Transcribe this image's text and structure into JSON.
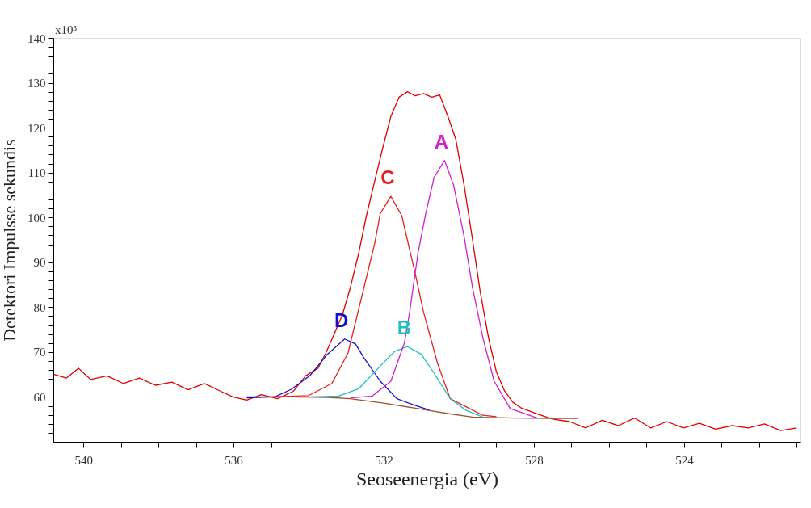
{
  "chart_data": {
    "type": "line",
    "xlabel": "Seoseenergia (eV)",
    "ylabel": "Detektori Impulsse sekundis",
    "annotations": [
      "x10³"
    ],
    "xlim": [
      540.8,
      520.9
    ],
    "xticks": [
      {
        "value": 521,
        "label": null
      },
      {
        "value": 522,
        "label": null
      },
      {
        "value": 523,
        "label": null
      },
      524,
      {
        "value": 525,
        "label": null
      },
      {
        "value": 526,
        "label": null
      },
      {
        "value": 527,
        "label": null
      },
      528,
      {
        "value": 529,
        "label": null
      },
      {
        "value": 530,
        "label": null
      },
      {
        "value": 531,
        "label": null
      },
      532,
      {
        "value": 533,
        "label": null
      },
      {
        "value": 534,
        "label": null
      },
      {
        "value": 535,
        "label": null
      },
      536,
      {
        "value": 537,
        "label": null
      },
      {
        "value": 538,
        "label": null
      },
      {
        "value": 539,
        "label": null
      },
      540
    ],
    "ylim": [
      50,
      140
    ],
    "yticks": [
      {
        "value": 52,
        "label": null
      },
      {
        "value": 54,
        "label": null
      },
      {
        "value": 56,
        "label": null
      },
      {
        "value": 58,
        "label": null
      },
      60,
      {
        "value": 62,
        "label": null
      },
      {
        "value": 64,
        "label": null
      },
      {
        "value": 66,
        "label": null
      },
      {
        "value": 68,
        "label": null
      },
      70,
      {
        "value": 72,
        "label": null
      },
      {
        "value": 74,
        "label": null
      },
      {
        "value": 76,
        "label": null
      },
      {
        "value": 78,
        "label": null
      },
      80,
      {
        "value": 82,
        "label": null
      },
      {
        "value": 84,
        "label": null
      },
      {
        "value": 86,
        "label": null
      },
      {
        "value": 88,
        "label": null
      },
      90,
      {
        "value": 92,
        "label": null
      },
      {
        "value": 94,
        "label": null
      },
      {
        "value": 96,
        "label": null
      },
      {
        "value": 98,
        "label": null
      },
      100,
      {
        "value": 102,
        "label": null
      },
      {
        "value": 104,
        "label": null
      },
      {
        "value": 106,
        "label": null
      },
      {
        "value": 108,
        "label": null
      },
      110,
      {
        "value": 112,
        "label": null
      },
      {
        "value": 114,
        "label": null
      },
      {
        "value": 116,
        "label": null
      },
      {
        "value": 118,
        "label": null
      },
      120,
      {
        "value": 122,
        "label": null
      },
      {
        "value": 124,
        "label": null
      },
      {
        "value": 126,
        "label": null
      },
      {
        "value": 128,
        "label": null
      },
      130,
      {
        "value": 132,
        "label": null
      },
      {
        "value": 134,
        "label": null
      },
      {
        "value": 136,
        "label": null
      },
      {
        "value": 138,
        "label": null
      },
      140
    ],
    "grid": false,
    "legend": false,
    "marker": "none",
    "line_style": "solid",
    "series": [
      {
        "color": "#e00000",
        "x": [
          540.78,
          540.45,
          540.13,
          539.81,
          539.37,
          538.94,
          538.51,
          538.08,
          537.64,
          537.21,
          536.78,
          536.35,
          536.02,
          535.65,
          535.26,
          534.83,
          534.4,
          534.08,
          533.75,
          533.54,
          533.32,
          533.1,
          532.89,
          532.67,
          532.46,
          532.24,
          532.02,
          531.81,
          531.59,
          531.37,
          531.16,
          530.94,
          530.72,
          530.51,
          530.29,
          530.08,
          529.86,
          529.64,
          529.43,
          529.21,
          529.0,
          528.78,
          528.56,
          528.35,
          527.91,
          527.48,
          527.05,
          526.62,
          526.18,
          525.75,
          525.32,
          524.89,
          524.46,
          524.02,
          523.59,
          523.16,
          522.72,
          522.29,
          521.86,
          521.43,
          521.0
        ],
        "values": [
          65.0,
          64.2,
          66.4,
          63.9,
          64.7,
          63.0,
          64.2,
          62.6,
          63.3,
          61.6,
          63.0,
          61.3,
          60.0,
          59.3,
          60.5,
          59.6,
          61.3,
          64.7,
          66.4,
          69.8,
          74.0,
          78.3,
          84.3,
          91.9,
          100.4,
          108.1,
          115.7,
          122.5,
          126.8,
          128.0,
          127.1,
          127.6,
          126.8,
          127.3,
          122.5,
          117.4,
          107.2,
          95.3,
          83.4,
          73.2,
          65.6,
          61.3,
          58.8,
          57.6,
          56.2,
          55.0,
          54.5,
          53.1,
          54.8,
          53.6,
          55.3,
          53.1,
          54.5,
          53.1,
          54.1,
          52.8,
          53.6,
          53.1,
          54.0,
          52.5,
          53.1
        ]
      },
      {
        "color": "#a0522d",
        "x": [
          535.65,
          534.5,
          533.5,
          532.89,
          532.0,
          531.09,
          530.3,
          529.64,
          528.5,
          527.5,
          526.83
        ],
        "values": [
          60.0,
          60.0,
          59.9,
          59.6,
          58.6,
          57.4,
          56.3,
          55.5,
          55.3,
          55.2,
          55.2
        ]
      },
      {
        "name": "D",
        "color": "#1010d0",
        "x": [
          535.65,
          534.9,
          534.46,
          533.97,
          533.5,
          533.04,
          532.75,
          532.52,
          532.09,
          531.65,
          531.2,
          530.79
        ],
        "values": [
          59.8,
          60.0,
          61.7,
          64.7,
          69.5,
          72.9,
          71.8,
          68.6,
          63.5,
          59.6,
          58.2,
          57.1
        ]
      },
      {
        "name": "C",
        "color": "#e82020",
        "x": [
          535.0,
          534.0,
          533.38,
          532.95,
          532.24,
          532.09,
          531.81,
          531.52,
          531.16,
          530.94,
          530.57,
          530.23,
          529.36,
          529.0
        ],
        "values": [
          60.0,
          60.3,
          63.0,
          69.8,
          94.2,
          100.9,
          104.7,
          100.4,
          87.4,
          78.9,
          67.6,
          59.6,
          55.9,
          55.6
        ]
      },
      {
        "name": "B",
        "color": "#20c0c0",
        "x": [
          533.97,
          533.2,
          532.67,
          532.09,
          531.7,
          531.37,
          531.0,
          530.66,
          530.23,
          529.8,
          529.36
        ],
        "values": [
          60.0,
          60.2,
          61.8,
          66.9,
          70.2,
          71.2,
          69.5,
          65.3,
          59.6,
          57.0,
          55.5
        ]
      },
      {
        "name": "A",
        "color": "#d020d0",
        "x": [
          532.89,
          532.3,
          531.81,
          531.45,
          531.31,
          531.09,
          530.88,
          530.66,
          530.38,
          530.14,
          529.86,
          529.64,
          529.36,
          529.06,
          528.63,
          527.91
        ],
        "values": [
          59.8,
          60.2,
          63.5,
          72.0,
          78.9,
          91.9,
          100.9,
          108.9,
          112.7,
          107.2,
          95.8,
          84.6,
          73.2,
          63.5,
          57.4,
          55.3
        ]
      }
    ]
  }
}
